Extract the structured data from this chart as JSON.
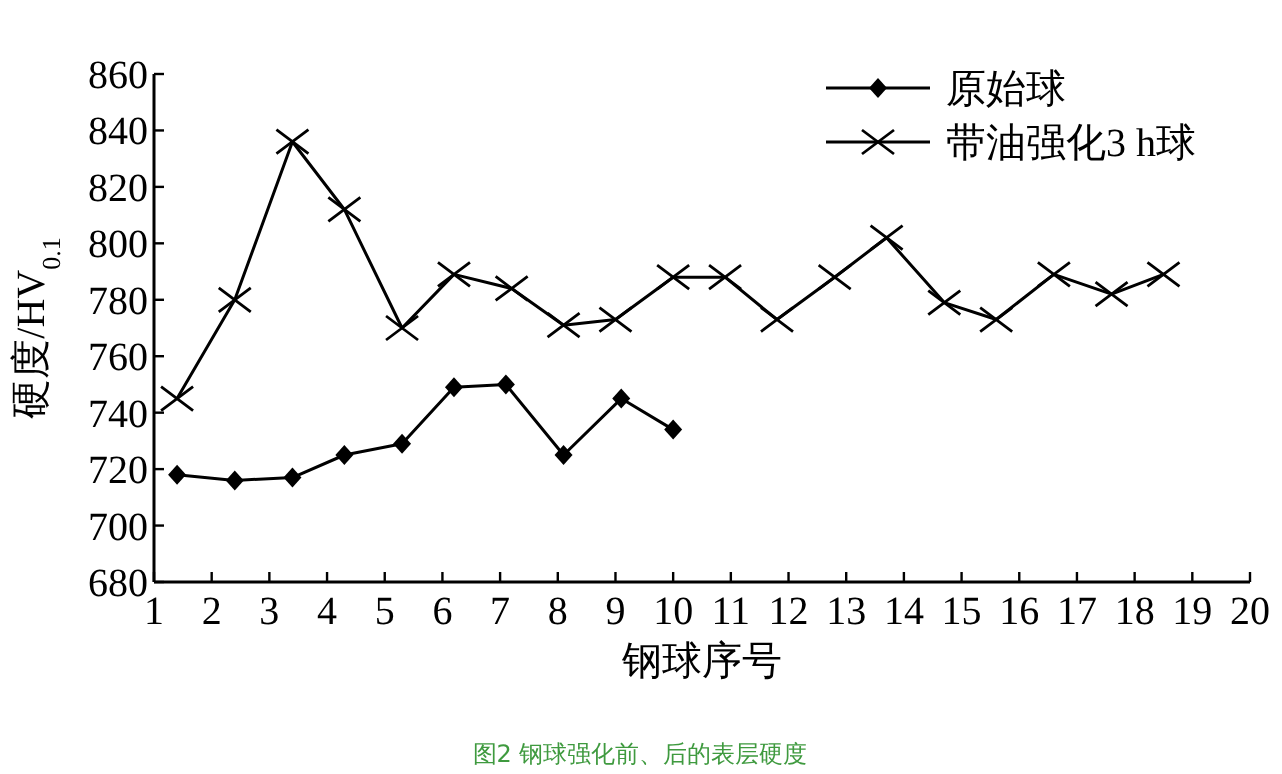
{
  "chart_data": {
    "type": "line",
    "xlabel": "钢球序号",
    "ylabel": "硬度/HV$_{0.1}$",
    "xlim": [
      1,
      20
    ],
    "xticks": [
      1,
      2,
      3,
      4,
      5,
      6,
      7,
      8,
      9,
      10,
      11,
      12,
      13,
      14,
      15,
      16,
      17,
      18,
      19,
      20
    ],
    "ylim": [
      680,
      860
    ],
    "yticks": [
      680,
      700,
      720,
      740,
      760,
      780,
      800,
      820,
      840,
      860
    ],
    "grid": false,
    "legend": "top right",
    "line_style": "solid",
    "annotations": [
      "图2 钢球强化前、后的表层硬度"
    ],
    "series": [
      {
        "name": "原始球",
        "color": "#000000",
        "marker": "diamond",
        "x": [
          1.4,
          2.4,
          3.4,
          4.3,
          5.3,
          6.2,
          7.1,
          8.1,
          9.1,
          10.0
        ],
        "values": [
          718,
          716,
          717,
          725,
          729,
          749,
          750,
          725,
          745,
          734
        ]
      },
      {
        "name": "带油强化3 h球",
        "color": "#000000",
        "marker": "cross",
        "x": [
          1.4,
          2.4,
          3.4,
          4.3,
          5.3,
          6.2,
          7.2,
          8.1,
          9.0,
          10.0,
          10.9,
          11.8,
          12.8,
          13.7,
          14.7,
          15.6,
          16.6,
          17.6,
          18.5
        ],
        "values": [
          745,
          780,
          836,
          812,
          770,
          789,
          784,
          771,
          773,
          788,
          788,
          773,
          788,
          802,
          779,
          773,
          789,
          782,
          789
        ]
      }
    ]
  }
}
